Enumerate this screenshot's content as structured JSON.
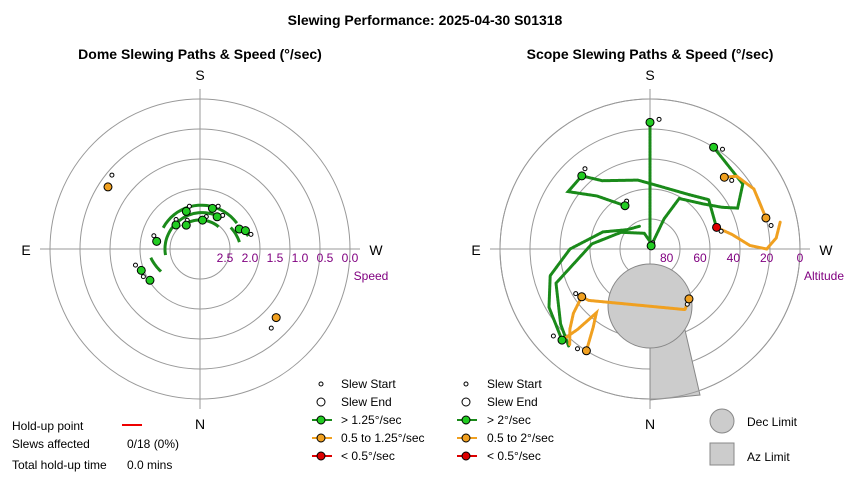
{
  "title": "Slewing Performance: 2025-04-30 S01318",
  "colors": {
    "fast": "#22cc22",
    "fast_line": "#1a8a1a",
    "mid": "#f0a020",
    "slow": "#dd0000",
    "grid": "#999999",
    "label": "#800080",
    "limit": "#cccccc",
    "holdup": "#ee0000"
  },
  "holdup": {
    "point_label": "Hold-up point",
    "slews_label": "Slews affected",
    "slews_value": "0/18 (0%)",
    "time_label": "Total hold-up time",
    "time_value": "0.0 mins"
  },
  "chart_data": [
    {
      "type": "scatter",
      "title": "Dome Slewing Paths & Speed (°/sec)",
      "directions": {
        "top": "S",
        "bottom": "N",
        "left": "E",
        "right": "W"
      },
      "radial_axis": {
        "label": "Speed",
        "ticks": [
          "2.5",
          "2.0",
          "1.5",
          "1.0",
          "0.5",
          "0.0"
        ],
        "range": [
          3.0,
          0.0
        ]
      },
      "legend": [
        "Slew Start",
        "Slew End",
        "> 1.25°/sec",
        "0.5 to 1.25°/sec",
        "< 0.5°/sec"
      ],
      "slews": [
        {
          "az": 197,
          "speed": 2.15,
          "cat": "fast"
        },
        {
          "az": 208,
          "speed": 2.27,
          "cat": "fast"
        },
        {
          "az": 312,
          "speed": 0.95,
          "cat": "mid"
        },
        {
          "az": 243,
          "speed": 2.12,
          "cat": "fast"
        },
        {
          "az": 248,
          "speed": 2.02,
          "cat": "fast"
        },
        {
          "az": 124,
          "speed": 0.78,
          "cat": "mid"
        },
        {
          "az": 70,
          "speed": 1.75,
          "cat": "fast"
        },
        {
          "az": 58,
          "speed": 1.82,
          "cat": "fast"
        },
        {
          "az": 100,
          "speed": 2.12,
          "cat": "fast"
        },
        {
          "az": 135,
          "speed": 2.32,
          "cat": "fast"
        },
        {
          "az": 160,
          "speed": 2.2,
          "cat": "fast"
        },
        {
          "az": 185,
          "speed": 2.42,
          "cat": "fast"
        },
        {
          "az": 150,
          "speed": 2.45,
          "cat": "fast"
        }
      ]
    },
    {
      "type": "scatter",
      "title": "Scope Slewing Paths & Speed (°/sec)",
      "directions": {
        "top": "S",
        "bottom": "N",
        "left": "E",
        "right": "W"
      },
      "radial_axis": {
        "label": "Altitude",
        "ticks": [
          "80",
          "60",
          "40",
          "20",
          "0"
        ],
        "range": [
          90,
          0
        ]
      },
      "legend": [
        "Slew Start",
        "Slew End",
        "> 2°/sec",
        "0.5 to 2°/sec",
        "< 0.5°/sec"
      ],
      "limits": [
        "Dec Limit",
        "Az Limit"
      ],
      "slews": [
        {
          "az": 180,
          "alt": 14,
          "cat": "fast"
        },
        {
          "az": 137,
          "alt": 30,
          "cat": "fast"
        },
        {
          "az": 226,
          "alt": 28,
          "cat": "mid"
        },
        {
          "az": 252,
          "alt": 48,
          "cat": "slow"
        },
        {
          "az": 212,
          "alt": 18,
          "cat": "fast"
        },
        {
          "az": 44,
          "alt": 14,
          "cat": "fast"
        },
        {
          "az": 32,
          "alt": 18,
          "cat": "mid"
        },
        {
          "az": 55,
          "alt": 40,
          "cat": "mid"
        },
        {
          "az": 322,
          "alt": 52,
          "cat": "mid"
        },
        {
          "az": 255,
          "alt": 18,
          "cat": "mid"
        },
        {
          "az": 150,
          "alt": 60,
          "cat": "fast"
        },
        {
          "az": 200,
          "alt": 88,
          "cat": "fast"
        }
      ]
    }
  ]
}
